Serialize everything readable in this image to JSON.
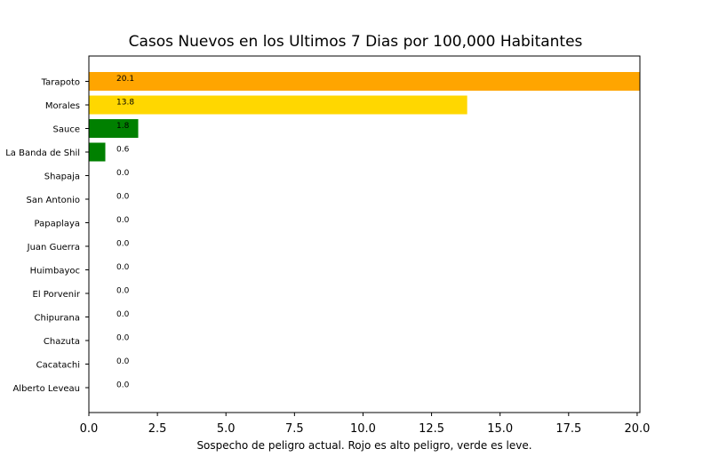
{
  "chart_data": {
    "type": "bar",
    "orientation": "horizontal",
    "title": "Casos Nuevos en los Ultimos 7 Dias por 100,000 Habitantes",
    "xlabel": "Sospecho de peligro actual. Rojo es alto peligro, verde es leve.",
    "ylabel": "",
    "xlim": [
      0,
      20.1
    ],
    "x_ticks": [
      "0.0",
      "2.5",
      "5.0",
      "7.5",
      "10.0",
      "12.5",
      "15.0",
      "17.5",
      "20.0"
    ],
    "grid": false,
    "categories": [
      "Tarapoto",
      "Morales",
      "Sauce",
      "La Banda de Shil",
      "Shapaja",
      "San Antonio",
      "Papaplaya",
      "Juan Guerra",
      "Huimbayoc",
      "El Porvenir",
      "Chipurana",
      "Chazuta",
      "Cacatachi",
      "Alberto Leveau"
    ],
    "values": [
      20.1,
      13.8,
      1.8,
      0.6,
      0.0,
      0.0,
      0.0,
      0.0,
      0.0,
      0.0,
      0.0,
      0.0,
      0.0,
      0.0
    ],
    "labels": [
      "20.1",
      "13.8",
      "1.8",
      "0.6",
      "0.0",
      "0.0",
      "0.0",
      "0.0",
      "0.0",
      "0.0",
      "0.0",
      "0.0",
      "0.0",
      "0.0"
    ],
    "colors": [
      "#FFA500",
      "#FFD700",
      "#008000",
      "#008000",
      "#008000",
      "#008000",
      "#008000",
      "#008000",
      "#008000",
      "#008000",
      "#008000",
      "#008000",
      "#008000",
      "#008000"
    ]
  }
}
